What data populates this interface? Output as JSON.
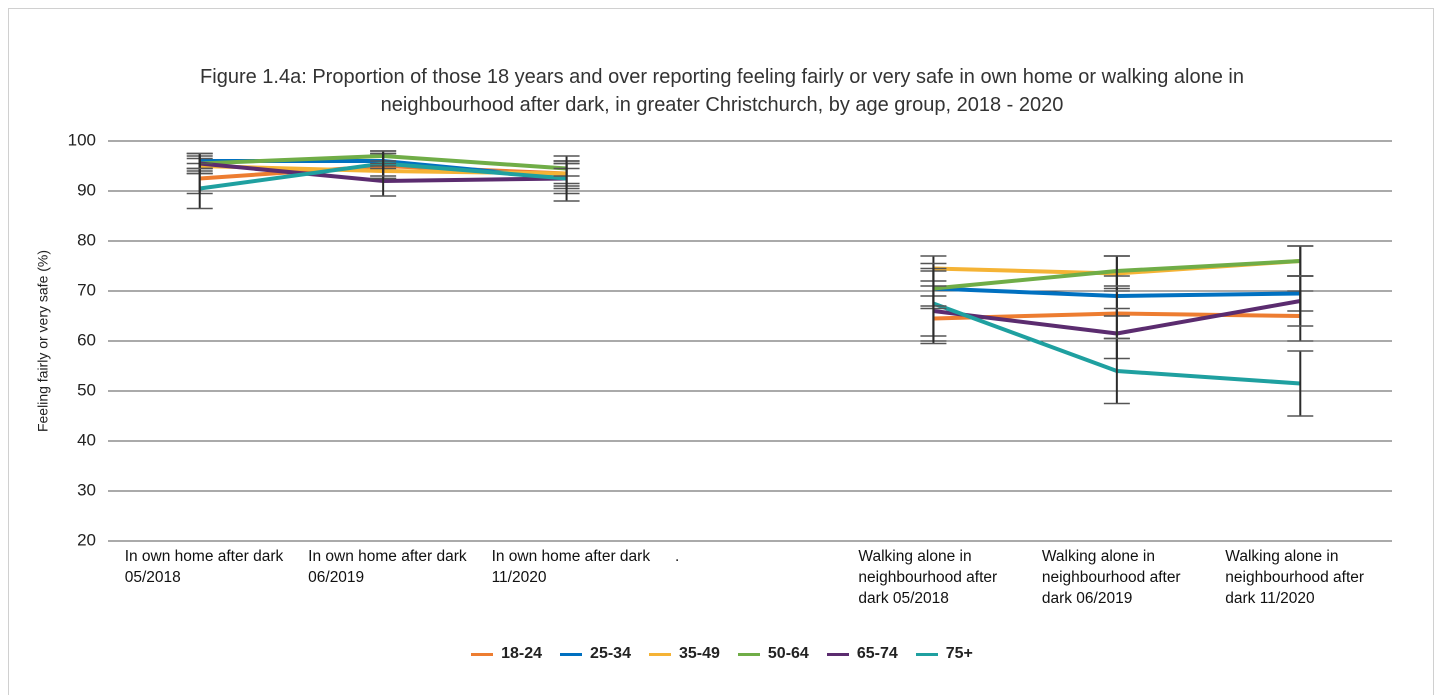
{
  "chart_data": {
    "type": "line",
    "title": [
      "Figure 1.4a: Proportion of those 18 years and over reporting feeling fairly or very safe in own home or walking alone in",
      "neighbourhood after dark, in greater Christchurch, by age group, 2018 - 2020"
    ],
    "y_label": "Feeling fairly or very safe (%)",
    "categories": [
      "In own home after dark 05/2018",
      "In own home after dark 06/2019",
      "In own home after dark 11/2020",
      ".",
      "Walking alone in neighbourhood after dark 05/2018",
      "Walking alone in neighbourhood after dark 06/2019",
      "Walking alone in neighbourhood after dark 11/2020"
    ],
    "ylim": [
      20,
      100
    ],
    "yticks": [
      20,
      30,
      40,
      50,
      60,
      70,
      80,
      90,
      100
    ],
    "grid": true,
    "legend": "bottom",
    "series": [
      {
        "name": "18-24",
        "color": "#ed7d31",
        "values": [
          92.5,
          95,
          93.5,
          null,
          64.5,
          65.5,
          65
        ],
        "errors": [
          3,
          2.5,
          2.5,
          null,
          4.5,
          5,
          5
        ]
      },
      {
        "name": "25-34",
        "color": "#0070c0",
        "values": [
          96,
          96,
          92.5,
          null,
          70.5,
          69,
          69.5
        ],
        "errors": [
          1.5,
          1.5,
          2,
          null,
          4,
          4,
          3.5
        ]
      },
      {
        "name": "35-49",
        "color": "#f5b335",
        "values": [
          95,
          94,
          93.5,
          null,
          74.5,
          73.5,
          76
        ],
        "errors": [
          1.5,
          1.5,
          2,
          null,
          2.5,
          3.5,
          3
        ]
      },
      {
        "name": "50-64",
        "color": "#70ad47",
        "values": [
          95.5,
          97,
          94.5,
          null,
          70.5,
          74,
          76
        ],
        "errors": [
          1.5,
          1,
          1.5,
          null,
          3.5,
          3,
          3
        ]
      },
      {
        "name": "65-74",
        "color": "#5b2c6f",
        "values": [
          95.5,
          92,
          92.5,
          null,
          66,
          61.5,
          68
        ],
        "errors": [
          2,
          3,
          3,
          null,
          5,
          5,
          5
        ]
      },
      {
        "name": "75+",
        "color": "#1fa0a0",
        "values": [
          90.5,
          95.5,
          92.5,
          null,
          67.5,
          54,
          51.5
        ],
        "errors": [
          4,
          2.5,
          4.5,
          null,
          8,
          6.5,
          6.5
        ]
      }
    ]
  }
}
